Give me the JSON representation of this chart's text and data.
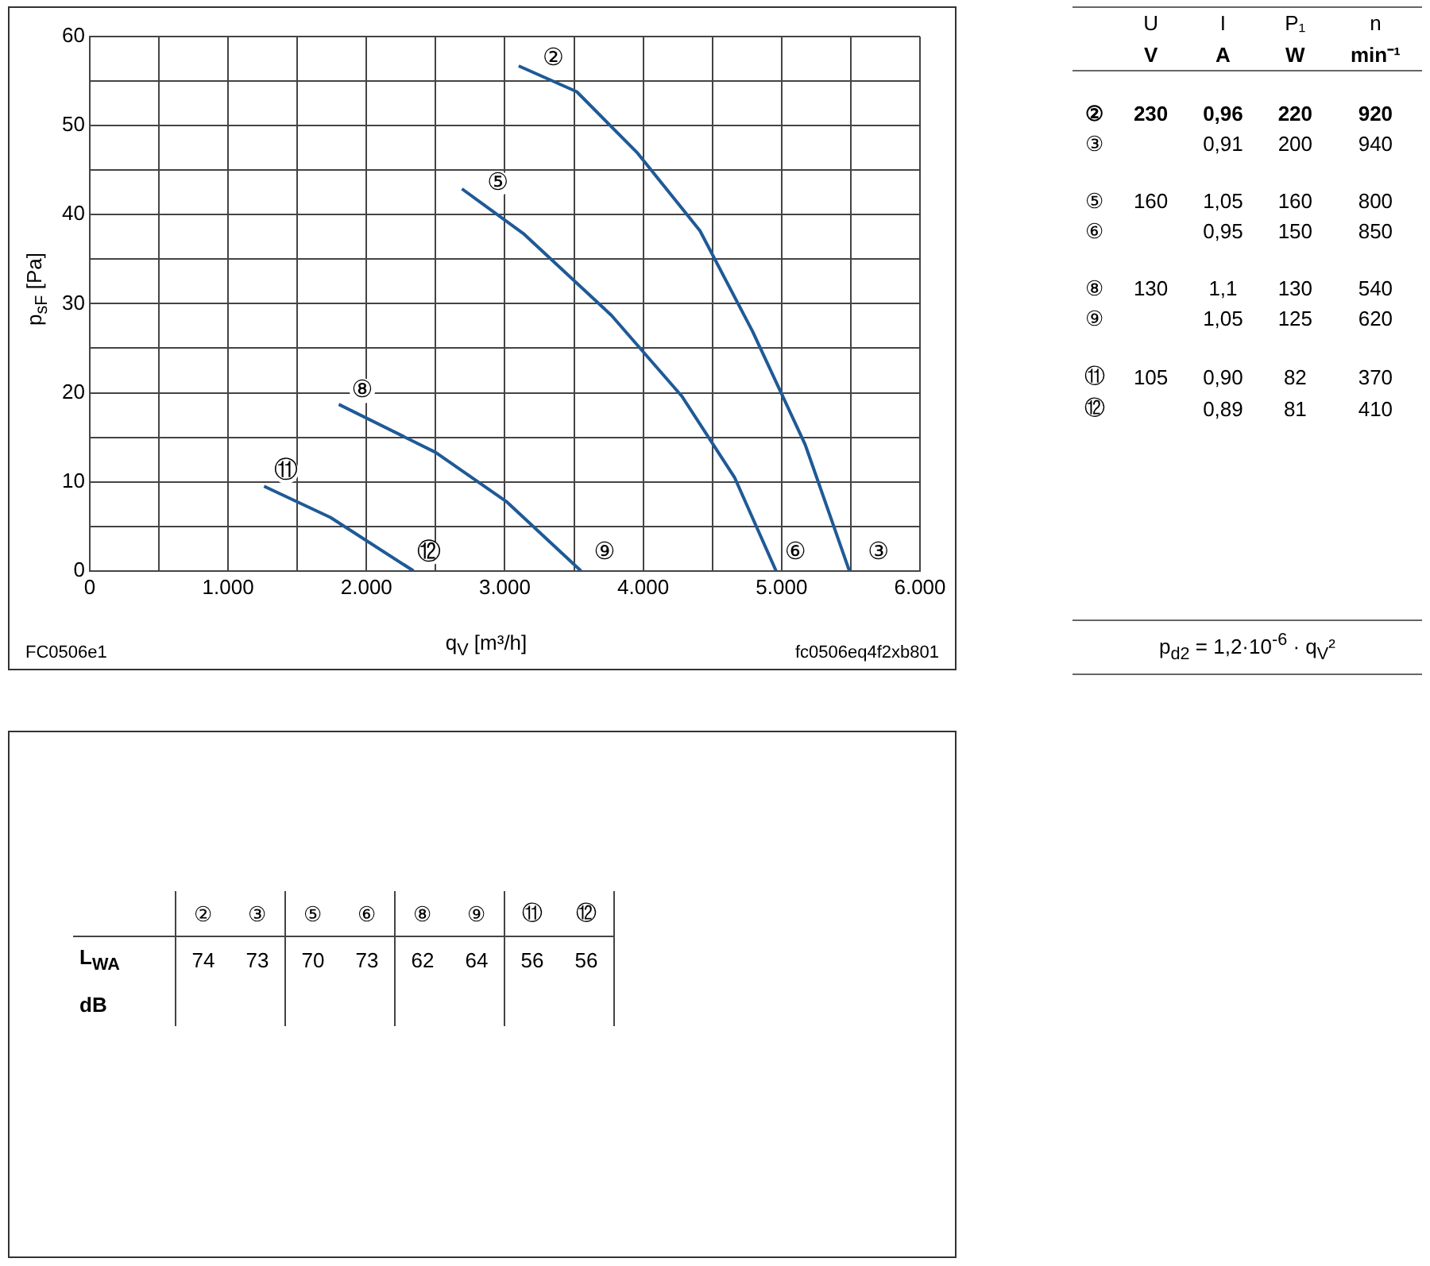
{
  "chart_data": [
    {
      "type": "line",
      "xlabel": "q$_{V}$ [m³/h]",
      "ylabel": "p$_{sF}$ [Pa]",
      "xlim": [
        0,
        6000
      ],
      "ylim": [
        0,
        60
      ],
      "xticks": [
        0,
        {
          "value": 500,
          "label": null
        },
        {
          "value": 1000,
          "label": "1.000"
        },
        {
          "value": 1500,
          "label": null
        },
        {
          "value": 2000,
          "label": "2.000"
        },
        {
          "value": 2500,
          "label": null
        },
        {
          "value": 3000,
          "label": "3.000"
        },
        {
          "value": 3500,
          "label": null
        },
        {
          "value": 4000,
          "label": "4.000"
        },
        {
          "value": 4500,
          "label": null
        },
        {
          "value": 5000,
          "label": "5.000"
        },
        {
          "value": 5500,
          "label": null
        },
        {
          "value": 6000,
          "label": "6.000"
        }
      ],
      "yticks": [
        0,
        {
          "value": 5,
          "label": null
        },
        10,
        {
          "value": 15,
          "label": null
        },
        20,
        {
          "value": 25,
          "label": null
        },
        30,
        {
          "value": 35,
          "label": null
        },
        40,
        {
          "value": 45,
          "label": null
        },
        50,
        {
          "value": 55,
          "label": null
        },
        60
      ],
      "grid": true,
      "legend": false,
      "marker": "none",
      "line_style": "solid",
      "series": [
        {
          "color": "#1f5a96",
          "x": [
            3100,
            3520,
            3960,
            4410,
            4790,
            5170,
            5490
          ],
          "values": [
            56.7,
            53.8,
            46.9,
            38.2,
            26.9,
            14.2,
            0
          ]
        },
        {
          "color": "#1f5a96",
          "x": [
            2690,
            3140,
            3770,
            4280,
            4660,
            4960
          ],
          "values": [
            42.9,
            37.8,
            28.7,
            19.6,
            10.5,
            0
          ]
        },
        {
          "color": "#1f5a96",
          "x": [
            1800,
            2500,
            3010,
            3550
          ],
          "values": [
            18.7,
            13.3,
            7.8,
            0
          ]
        },
        {
          "color": "#1f5a96",
          "x": [
            1260,
            1740,
            2340
          ],
          "values": [
            9.5,
            6,
            0
          ]
        }
      ],
      "annotations": [
        {
          "text": "②",
          "x": 3350,
          "y": 57.5
        },
        {
          "text": "③",
          "x": 5700,
          "y": 2
        },
        {
          "text": "⑤",
          "x": 2950,
          "y": 43.5
        },
        {
          "text": "⑥",
          "x": 5100,
          "y": 2
        },
        {
          "text": "⑧",
          "x": 1970,
          "y": 20.2
        },
        {
          "text": "⑨",
          "x": 3720,
          "y": 2
        },
        {
          "text": "⑪",
          "x": 1420,
          "y": 11.2
        },
        {
          "text": "⑫",
          "x": 2450,
          "y": 2
        },
        "FC0506e1",
        "fc0506eq4f2xb801"
      ]
    },
    {
      "type": "other",
      "annotations": [
        null,
        "U",
        "I",
        "P₁",
        "n",
        null,
        "V",
        "A",
        "W",
        "min⁻¹",
        "②",
        "230",
        "0,96",
        "220",
        "920",
        "③",
        null,
        "0,91",
        "200",
        "940",
        "⑤",
        "160",
        "1,05",
        "160",
        "800",
        "⑥",
        null,
        "0,95",
        "150",
        "850",
        "⑧",
        "130",
        "1,1",
        "130",
        "540",
        "⑨",
        null,
        "1,05",
        "125",
        "620",
        "⑪",
        "105",
        "0,90",
        "82",
        "370",
        "⑫",
        null,
        "0,89",
        "81",
        "410"
      ]
    },
    {
      "type": "other",
      "annotations": [
        "p$_{d2}$ = 1,2·10$^{-6}$ · q$_{V}$²"
      ]
    },
    {
      "type": "other",
      "annotations": [
        null,
        "②",
        "③",
        "⑤",
        "⑥",
        "⑧",
        "⑨",
        "⑪",
        "⑫",
        "L$_{WA}$",
        "74",
        "73",
        "70",
        "73",
        "62",
        "64",
        "56",
        "56",
        "dB",
        null,
        null,
        null,
        null,
        null,
        null,
        null,
        null
      ]
    }
  ]
}
